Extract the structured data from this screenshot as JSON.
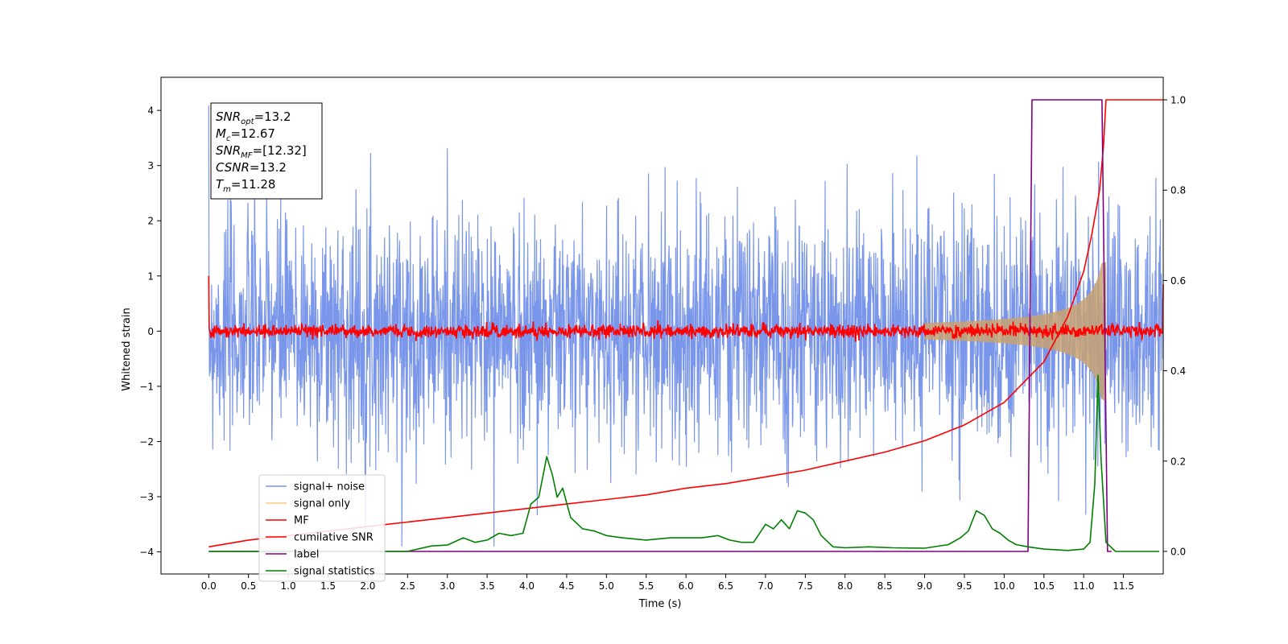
{
  "chart_data": {
    "type": "line",
    "title": "",
    "xlabel": "Time (s)",
    "ylabel": "Whitened strain",
    "xlim": [
      -0.6,
      12.0
    ],
    "ylim": [
      -4.4,
      4.6
    ],
    "y2lim": [
      -0.05,
      1.05
    ],
    "x_ticks": [
      "0.0",
      "0.5",
      "1.0",
      "1.5",
      "2.0",
      "2.5",
      "3.0",
      "3.5",
      "4.0",
      "4.5",
      "5.0",
      "5.5",
      "6.0",
      "6.5",
      "7.0",
      "7.5",
      "8.0",
      "8.5",
      "9.0",
      "9.5",
      "10.0",
      "10.5",
      "11.0",
      "11.5"
    ],
    "y_ticks": [
      "4",
      "3",
      "2",
      "1",
      "0",
      "−1",
      "−2",
      "−3",
      "−4"
    ],
    "y2_ticks": [
      "1.0",
      "0.8",
      "0.6",
      "0.4",
      "0.2",
      "0.0"
    ],
    "grid": false,
    "legend_position": "lower-left",
    "annotation": {
      "lines": [
        {
          "base": "SNR",
          "sub": "opt",
          "value": "=13.2"
        },
        {
          "base": "M",
          "sub": "c",
          "value": "=12.67"
        },
        {
          "base": "SNR",
          "sub": "MF",
          "value": "=[12.32]"
        },
        {
          "base": "CSNR",
          "sub": "",
          "value": "=13.2"
        },
        {
          "base": "T",
          "sub": "m",
          "value": "=11.28"
        }
      ]
    },
    "series": [
      {
        "name": "signal+ noise",
        "color": "#4169e1",
        "axis": "left",
        "kind": "noise",
        "x_range": [
          0.0,
          12.0
        ],
        "envelope": 2.3
      },
      {
        "name": "signal only",
        "color": "#ffa500",
        "axis": "left",
        "kind": "chirp",
        "t_merge": 11.28,
        "start_time": 9.0,
        "peak_amplitude": 1.25
      },
      {
        "name": "MF",
        "color": "#ff0000",
        "axis": "left",
        "kind": "matched-filter",
        "x_range": [
          0.0,
          12.0
        ],
        "level": 0.0,
        "band": 0.1
      },
      {
        "name": "cumilative SNR",
        "color": "#ff0000",
        "axis": "right",
        "x": [
          0.0,
          0.5,
          1.0,
          1.5,
          2.0,
          2.5,
          3.0,
          3.5,
          4.0,
          4.5,
          5.0,
          5.5,
          6.0,
          6.5,
          7.0,
          7.5,
          8.0,
          8.5,
          9.0,
          9.5,
          10.0,
          10.5,
          10.8,
          11.0,
          11.1,
          11.2,
          11.25,
          11.28,
          12.0
        ],
        "y": [
          0.01,
          0.025,
          0.035,
          0.045,
          0.055,
          0.065,
          0.075,
          0.085,
          0.095,
          0.105,
          0.115,
          0.125,
          0.14,
          0.15,
          0.165,
          0.18,
          0.2,
          0.22,
          0.245,
          0.28,
          0.33,
          0.42,
          0.52,
          0.62,
          0.7,
          0.8,
          0.9,
          1.0,
          1.0
        ]
      },
      {
        "name": "label",
        "color": "#800080",
        "axis": "right",
        "x": [
          0.0,
          10.3,
          10.35,
          11.23,
          11.3,
          11.35
        ],
        "y": [
          0.0,
          0.0,
          1.0,
          1.0,
          0.0,
          0.0
        ]
      },
      {
        "name": "signal statistics",
        "color": "#008000",
        "axis": "right",
        "x": [
          0.0,
          0.5,
          1.0,
          1.5,
          2.0,
          2.5,
          2.8,
          3.0,
          3.2,
          3.35,
          3.5,
          3.65,
          3.8,
          3.95,
          4.05,
          4.15,
          4.25,
          4.32,
          4.38,
          4.45,
          4.55,
          4.7,
          4.85,
          5.0,
          5.2,
          5.5,
          5.8,
          6.0,
          6.2,
          6.4,
          6.55,
          6.7,
          6.85,
          7.0,
          7.1,
          7.2,
          7.3,
          7.4,
          7.5,
          7.6,
          7.7,
          7.85,
          8.0,
          8.3,
          8.6,
          9.0,
          9.3,
          9.45,
          9.55,
          9.65,
          9.75,
          9.85,
          9.95,
          10.05,
          10.15,
          10.3,
          10.5,
          10.8,
          11.0,
          11.08,
          11.14,
          11.18,
          11.22,
          11.28,
          11.4,
          11.6,
          11.95
        ],
        "y": [
          0.0,
          0.0,
          0.0,
          0.0,
          0.0,
          0.0,
          0.012,
          0.014,
          0.03,
          0.02,
          0.025,
          0.04,
          0.035,
          0.04,
          0.105,
          0.12,
          0.21,
          0.17,
          0.12,
          0.14,
          0.075,
          0.05,
          0.045,
          0.035,
          0.03,
          0.025,
          0.03,
          0.03,
          0.03,
          0.035,
          0.025,
          0.02,
          0.02,
          0.06,
          0.05,
          0.07,
          0.05,
          0.09,
          0.085,
          0.07,
          0.035,
          0.01,
          0.008,
          0.01,
          0.008,
          0.007,
          0.015,
          0.03,
          0.045,
          0.09,
          0.08,
          0.05,
          0.04,
          0.025,
          0.015,
          0.01,
          0.005,
          0.002,
          0.005,
          0.02,
          0.15,
          0.39,
          0.2,
          0.02,
          0.0,
          0.0,
          0.0
        ]
      }
    ]
  }
}
